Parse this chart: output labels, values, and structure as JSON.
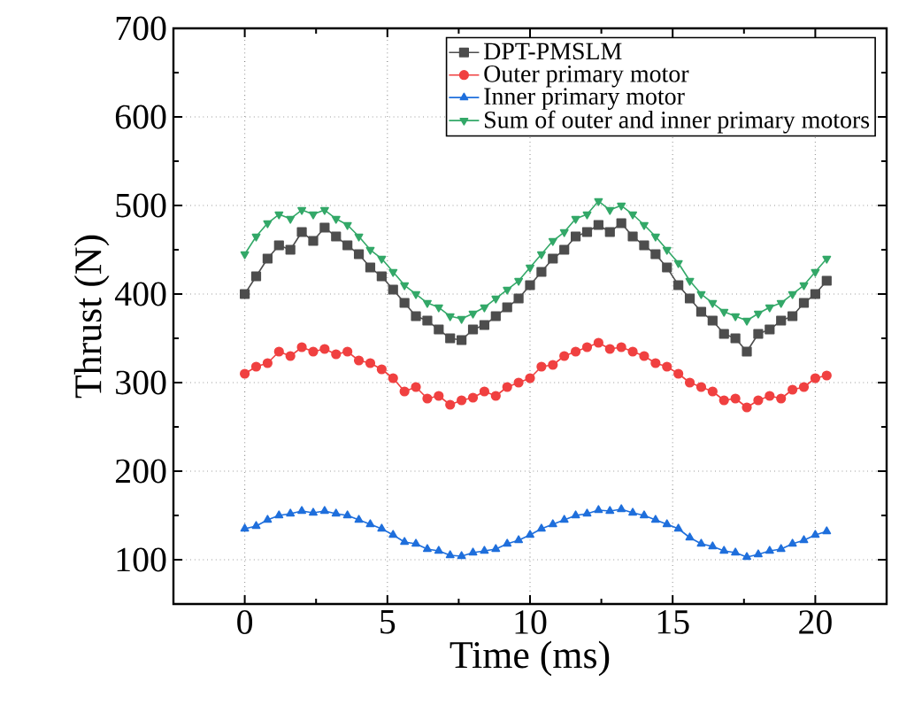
{
  "chart_data": {
    "type": "line",
    "xlabel": "Time (ms)",
    "ylabel": "Thrust (N)",
    "xlim": [
      -2.5,
      22.5
    ],
    "ylim": [
      50,
      700
    ],
    "xticks": [
      0,
      5,
      10,
      15,
      20
    ],
    "yticks": [
      100,
      200,
      300,
      400,
      500,
      600,
      700
    ],
    "grid": true,
    "legend": "top right",
    "x": [
      0,
      0.4,
      0.8,
      1.2,
      1.6,
      2.0,
      2.4,
      2.8,
      3.2,
      3.6,
      4.0,
      4.4,
      4.8,
      5.2,
      5.6,
      6.0,
      6.4,
      6.8,
      7.2,
      7.6,
      8.0,
      8.4,
      8.8,
      9.2,
      9.6,
      10.0,
      10.4,
      10.8,
      11.2,
      11.6,
      12.0,
      12.4,
      12.8,
      13.2,
      13.6,
      14.0,
      14.4,
      14.8,
      15.2,
      15.6,
      16.0,
      16.4,
      16.8,
      17.2,
      17.6,
      18.0,
      18.4,
      18.8,
      19.2,
      19.6,
      20.0,
      20.4
    ],
    "series": [
      {
        "name": "DPT-PMSLM",
        "color": "#4d4d4d",
        "marker": "square",
        "values": [
          400,
          420,
          440,
          455,
          450,
          470,
          460,
          475,
          465,
          455,
          445,
          430,
          420,
          405,
          390,
          375,
          370,
          360,
          350,
          348,
          360,
          365,
          375,
          385,
          395,
          410,
          425,
          440,
          450,
          465,
          470,
          478,
          470,
          480,
          465,
          455,
          445,
          430,
          410,
          395,
          380,
          370,
          355,
          350,
          335,
          355,
          360,
          370,
          375,
          390,
          400,
          415
        ]
      },
      {
        "name": "Outer primary motor",
        "color": "#f04040",
        "marker": "circle",
        "values": [
          310,
          318,
          322,
          335,
          330,
          340,
          335,
          338,
          332,
          335,
          325,
          322,
          315,
          305,
          290,
          295,
          282,
          285,
          275,
          280,
          283,
          290,
          285,
          295,
          300,
          305,
          318,
          320,
          330,
          335,
          340,
          345,
          338,
          340,
          335,
          330,
          322,
          318,
          310,
          300,
          295,
          290,
          280,
          282,
          272,
          280,
          285,
          282,
          292,
          295,
          305,
          308
        ]
      },
      {
        "name": "Inner primary motor",
        "color": "#1f6fdc",
        "marker": "triangle",
        "values": [
          135,
          138,
          145,
          150,
          152,
          155,
          153,
          155,
          152,
          150,
          145,
          140,
          135,
          128,
          120,
          118,
          112,
          110,
          105,
          104,
          108,
          110,
          112,
          118,
          122,
          128,
          135,
          140,
          145,
          150,
          152,
          156,
          155,
          157,
          153,
          150,
          145,
          140,
          135,
          125,
          118,
          115,
          110,
          108,
          103,
          106,
          110,
          112,
          118,
          122,
          128,
          132
        ]
      },
      {
        "name": "Sum of outer and inner primary motors",
        "color": "#33a868",
        "marker": "triangle-down",
        "values": [
          445,
          465,
          480,
          490,
          485,
          495,
          490,
          495,
          485,
          478,
          465,
          450,
          440,
          425,
          410,
          400,
          390,
          385,
          375,
          372,
          378,
          385,
          395,
          405,
          415,
          430,
          445,
          460,
          470,
          485,
          490,
          505,
          495,
          500,
          490,
          478,
          465,
          450,
          435,
          415,
          400,
          390,
          380,
          375,
          370,
          378,
          385,
          390,
          400,
          410,
          425,
          440
        ]
      }
    ]
  }
}
